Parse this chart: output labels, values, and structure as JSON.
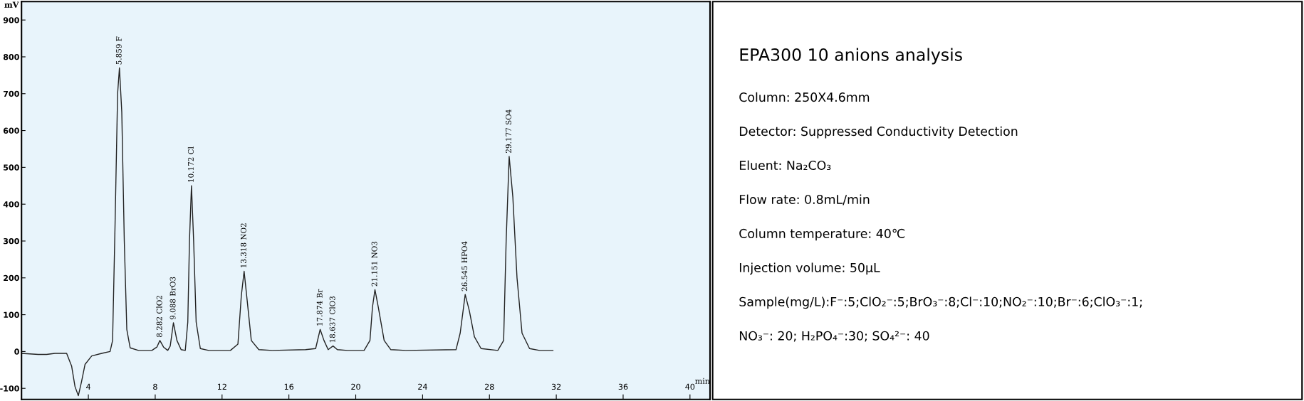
{
  "chart_data": [
    {
      "type": "line",
      "xlabel": "min",
      "ylabel": "mV",
      "x": [
        0,
        1,
        1.5,
        2,
        2.7,
        3.0,
        3.2,
        3.4,
        3.6,
        3.8,
        4.2,
        4.8,
        5.3,
        5.45,
        5.6,
        5.75,
        5.86,
        6.0,
        6.15,
        6.3,
        6.5,
        7.0,
        7.8,
        8.1,
        8.28,
        8.5,
        8.75,
        8.9,
        9.09,
        9.3,
        9.55,
        9.8,
        9.95,
        10.05,
        10.17,
        10.3,
        10.45,
        10.7,
        11.2,
        12.5,
        12.95,
        13.15,
        13.32,
        13.5,
        13.75,
        14.2,
        15,
        17.0,
        17.6,
        17.87,
        18.1,
        18.35,
        18.64,
        18.9,
        19.5,
        20.5,
        20.85,
        21.0,
        21.15,
        21.35,
        21.7,
        22.1,
        23,
        26.0,
        26.25,
        26.55,
        26.8,
        27.1,
        27.5,
        28.5,
        28.85,
        29.0,
        29.18,
        29.4,
        29.65,
        29.95,
        30.4,
        31.0,
        31.8
      ],
      "series": [
        {
          "color": "#222222",
          "values": [
            -5,
            -8,
            -8,
            -5,
            -5,
            -40,
            -95,
            -120,
            -80,
            -35,
            -12,
            -5,
            0,
            30,
            350,
            700,
            770,
            650,
            300,
            60,
            10,
            3,
            3,
            12,
            30,
            12,
            3,
            15,
            78,
            30,
            5,
            3,
            80,
            300,
            450,
            300,
            80,
            8,
            3,
            3,
            20,
            150,
            218,
            140,
            30,
            5,
            3,
            5,
            8,
            60,
            30,
            5,
            15,
            5,
            3,
            3,
            30,
            120,
            168,
            120,
            30,
            5,
            3,
            5,
            50,
            155,
            110,
            40,
            8,
            3,
            30,
            300,
            530,
            420,
            200,
            50,
            8,
            3,
            3
          ]
        }
      ],
      "xlim": [
        0,
        41.2
      ],
      "ylim": [
        -130,
        950
      ],
      "xticks": [
        4,
        8,
        12,
        16,
        20,
        24,
        28,
        32,
        36,
        40
      ],
      "yticks": [
        -100,
        0,
        100,
        200,
        300,
        400,
        500,
        600,
        700,
        800,
        900
      ],
      "annotations": [
        {
          "text": "5.859 F",
          "x": 5.859,
          "y": 770
        },
        {
          "text": "8.282 ClO2",
          "x": 8.282,
          "y": 30
        },
        {
          "text": "9.088 BrO3",
          "x": 9.088,
          "y": 78
        },
        {
          "text": "10.172 Cl",
          "x": 10.172,
          "y": 450
        },
        {
          "text": "13.318 NO2",
          "x": 13.318,
          "y": 218
        },
        {
          "text": "17.874 Br",
          "x": 17.874,
          "y": 60
        },
        {
          "text": "18.637 ClO3",
          "x": 18.637,
          "y": 15
        },
        {
          "text": "21.151 NO3",
          "x": 21.151,
          "y": 168
        },
        {
          "text": "26.545 HPO4",
          "x": 26.545,
          "y": 155
        },
        {
          "text": "29.177 SO4",
          "x": 29.177,
          "y": 530
        }
      ]
    },
    {
      "type": "other",
      "title": "EPA300 10 anions analysis",
      "annotations": [
        "Column: 250X4.6mm",
        "Detector: Suppressed Conductivity Detection",
        "Eluent: Na₂CO₃",
        "Flow rate: 0.8mL/min",
        "Column temperature: 40℃",
        "Injection volume: 50μL",
        "Sample(mg/L):F⁻:5;ClO₂⁻:5;BrO₃⁻:8;Cl⁻:10;NO₂⁻:10;Br⁻:6;ClO₃⁻:1;",
        "NO₃⁻: 20; H₂PO₄⁻:30; SO₄²⁻: 40"
      ]
    }
  ]
}
